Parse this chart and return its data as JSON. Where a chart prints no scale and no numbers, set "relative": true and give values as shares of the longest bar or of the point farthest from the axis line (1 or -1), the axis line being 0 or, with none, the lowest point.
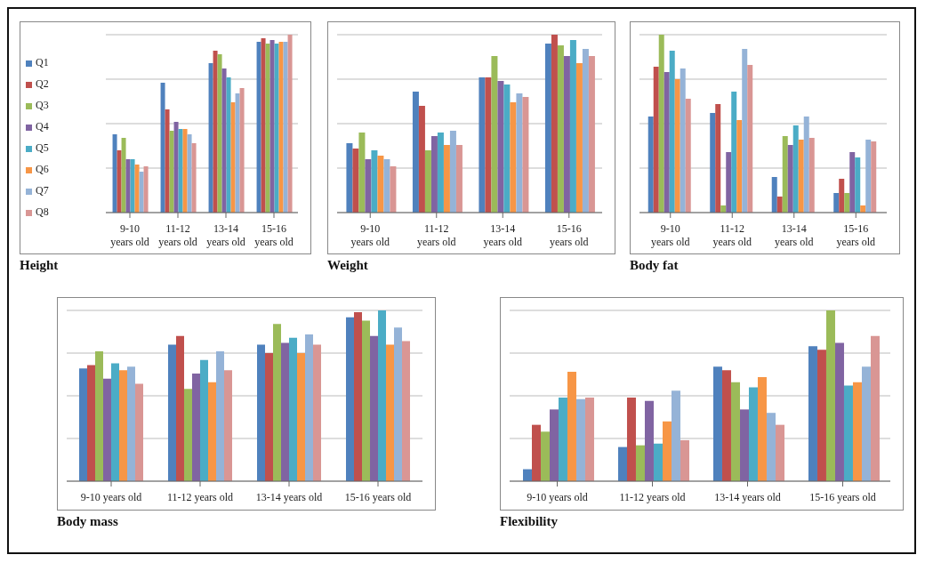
{
  "chart_data": [
    {
      "type": "bar",
      "title": "Height",
      "relative": true,
      "grid": "y",
      "legend": "left",
      "categories": [
        "9-10 years old",
        "11-12 years old",
        "13-14 years old",
        "15-16 years old"
      ],
      "series": [
        {
          "name": "Q1",
          "color": "#4f81bd",
          "values": [
            0.44,
            0.73,
            0.84,
            0.96
          ]
        },
        {
          "name": "Q2",
          "color": "#c0504d",
          "values": [
            0.35,
            0.58,
            0.91,
            0.98
          ]
        },
        {
          "name": "Q3",
          "color": "#9bbb59",
          "values": [
            0.42,
            0.46,
            0.89,
            0.95
          ]
        },
        {
          "name": "Q4",
          "color": "#8064a2",
          "values": [
            0.3,
            0.51,
            0.81,
            0.97
          ]
        },
        {
          "name": "Q5",
          "color": "#4bacc6",
          "values": [
            0.3,
            0.47,
            0.76,
            0.95
          ]
        },
        {
          "name": "Q6",
          "color": "#f79646",
          "values": [
            0.27,
            0.47,
            0.62,
            0.96
          ]
        },
        {
          "name": "Q7",
          "color": "#95b3d7",
          "values": [
            0.23,
            0.44,
            0.67,
            0.96
          ]
        },
        {
          "name": "Q8",
          "color": "#d99694",
          "values": [
            0.26,
            0.39,
            0.7,
            1
          ]
        }
      ]
    },
    {
      "type": "bar",
      "title": "Weight",
      "relative": true,
      "grid": "y",
      "categories": [
        "9-10 years old",
        "11-12 years old",
        "13-14 years old",
        "15-16 years old"
      ],
      "series": [
        {
          "color": "#4f81bd",
          "values": [
            0.39,
            0.68,
            0.76,
            0.95
          ]
        },
        {
          "color": "#c0504d",
          "values": [
            0.36,
            0.6,
            0.76,
            1
          ]
        },
        {
          "color": "#9bbb59",
          "values": [
            0.45,
            0.35,
            0.88,
            0.94
          ]
        },
        {
          "color": "#8064a2",
          "values": [
            0.3,
            0.43,
            0.74,
            0.88
          ]
        },
        {
          "color": "#4bacc6",
          "values": [
            0.35,
            0.45,
            0.72,
            0.97
          ]
        },
        {
          "color": "#f79646",
          "values": [
            0.32,
            0.38,
            0.62,
            0.84
          ]
        },
        {
          "color": "#95b3d7",
          "values": [
            0.3,
            0.46,
            0.67,
            0.92
          ]
        },
        {
          "color": "#d99694",
          "values": [
            0.26,
            0.38,
            0.65,
            0.88
          ]
        }
      ]
    },
    {
      "type": "bar",
      "title": "Body fat",
      "relative": true,
      "grid": "y",
      "categories": [
        "9-10 years old",
        "11-12 years old",
        "13-14 years old",
        "15-16 years old"
      ],
      "series": [
        {
          "color": "#4f81bd",
          "values": [
            0.54,
            0.56,
            0.2,
            0.11
          ]
        },
        {
          "color": "#c0504d",
          "values": [
            0.82,
            0.61,
            0.09,
            0.19
          ]
        },
        {
          "color": "#9bbb59",
          "values": [
            1,
            0.04,
            0.43,
            0.11
          ]
        },
        {
          "color": "#8064a2",
          "values": [
            0.79,
            0.34,
            0.38,
            0.34
          ]
        },
        {
          "color": "#4bacc6",
          "values": [
            0.91,
            0.68,
            0.49,
            0.31
          ]
        },
        {
          "color": "#f79646",
          "values": [
            0.75,
            0.52,
            0.41,
            0.04
          ]
        },
        {
          "color": "#95b3d7",
          "values": [
            0.81,
            0.92,
            0.54,
            0.41
          ]
        },
        {
          "color": "#d99694",
          "values": [
            0.64,
            0.83,
            0.42,
            0.4
          ]
        }
      ]
    },
    {
      "type": "bar",
      "title": "Body mass",
      "relative": true,
      "grid": "y",
      "categories": [
        "9-10 years old",
        "11-12 years old",
        "13-14 years old",
        "15-16 years old"
      ],
      "series": [
        {
          "color": "#4f81bd",
          "values": [
            0.66,
            0.8,
            0.8,
            0.96
          ]
        },
        {
          "color": "#c0504d",
          "values": [
            0.68,
            0.85,
            0.75,
            0.99
          ]
        },
        {
          "color": "#9bbb59",
          "values": [
            0.76,
            0.54,
            0.92,
            0.94
          ]
        },
        {
          "color": "#8064a2",
          "values": [
            0.6,
            0.63,
            0.81,
            0.85
          ]
        },
        {
          "color": "#4bacc6",
          "values": [
            0.69,
            0.71,
            0.84,
            1
          ]
        },
        {
          "color": "#f79646",
          "values": [
            0.65,
            0.58,
            0.75,
            0.8
          ]
        },
        {
          "color": "#95b3d7",
          "values": [
            0.67,
            0.76,
            0.86,
            0.9
          ]
        },
        {
          "color": "#d99694",
          "values": [
            0.57,
            0.65,
            0.8,
            0.82
          ]
        }
      ]
    },
    {
      "type": "bar",
      "title": "Flexibility",
      "relative": true,
      "grid": "y",
      "categories": [
        "9-10 years old",
        "11-12 years old",
        "13-14 years old",
        "15-16 years old"
      ],
      "series": [
        {
          "color": "#4f81bd",
          "values": [
            0.07,
            0.2,
            0.67,
            0.79
          ]
        },
        {
          "color": "#c0504d",
          "values": [
            0.33,
            0.49,
            0.65,
            0.77
          ]
        },
        {
          "color": "#9bbb59",
          "values": [
            0.29,
            0.21,
            0.58,
            1
          ]
        },
        {
          "color": "#8064a2",
          "values": [
            0.42,
            0.47,
            0.42,
            0.81
          ]
        },
        {
          "color": "#4bacc6",
          "values": [
            0.49,
            0.22,
            0.55,
            0.56
          ]
        },
        {
          "color": "#f79646",
          "values": [
            0.64,
            0.35,
            0.61,
            0.58
          ]
        },
        {
          "color": "#95b3d7",
          "values": [
            0.48,
            0.53,
            0.4,
            0.67
          ]
        },
        {
          "color": "#d99694",
          "values": [
            0.49,
            0.24,
            0.33,
            0.85
          ]
        }
      ]
    }
  ]
}
